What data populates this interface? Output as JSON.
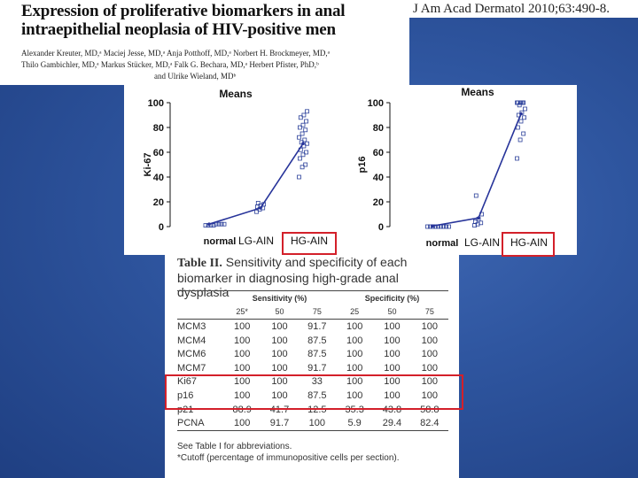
{
  "header": {
    "title": "Expression of proliferative biomarkers in anal intraepithelial neoplasia of HIV-positive men",
    "journal_ref": "J Am Acad Dermatol 2010;63:490-8.",
    "authors_line1": "Alexander Kreuter, MD,ᵃ Maciej Jesse, MD,ᵃ Anja Potthoff, MD,ᵃ Norbert H. Brockmeyer, MD,ᵃ",
    "authors_line2": "Thilo Gambichler, MD,ᵃ Markus Stücker, MD,ᵃ Falk G. Bechara, MD,ᵃ Herbert Pfister, PhD,ᵇ",
    "authors_line3": "and Ulrike Wieland, MDᵇ"
  },
  "chart_data": [
    {
      "type": "scatter",
      "title": "Means",
      "ylabel": "Ki-67",
      "xlabel": "",
      "categories": [
        "normal",
        "LG-AIN",
        "HG-AIN"
      ],
      "ylim": [
        0,
        100
      ],
      "yticks": [
        0,
        20,
        40,
        60,
        80,
        100
      ],
      "means": [
        2,
        15,
        67
      ],
      "points": {
        "normal": [
          1,
          1,
          1,
          1,
          2,
          2,
          2,
          2
        ],
        "LG-AIN": [
          12,
          14,
          15,
          16,
          17,
          18,
          19
        ],
        "HG-AIN": [
          40,
          48,
          50,
          55,
          58,
          60,
          62,
          65,
          67,
          68,
          70,
          72,
          75,
          78,
          80,
          82,
          85,
          88,
          90,
          93
        ]
      }
    },
    {
      "type": "scatter",
      "title": "Means",
      "ylabel": "p16",
      "xlabel": "",
      "categories": [
        "normal",
        "LG-AIN",
        "HG-AIN"
      ],
      "ylim": [
        0,
        100
      ],
      "yticks": [
        0,
        20,
        40,
        60,
        80,
        100
      ],
      "means": [
        0.5,
        7,
        91
      ],
      "points": {
        "normal": [
          0,
          0,
          0,
          0,
          0,
          0,
          0,
          0,
          0
        ],
        "LG-AIN": [
          1,
          2,
          3,
          4,
          6,
          10,
          25
        ],
        "HG-AIN": [
          55,
          70,
          75,
          80,
          85,
          88,
          90,
          92,
          95,
          98,
          100,
          100,
          100,
          100,
          100,
          100
        ]
      }
    }
  ],
  "table": {
    "title_bold": "Table II.",
    "title_rest": " Sensitivity and specificity of each biomarker in diagnosing high-grade anal dysplasia",
    "group_headers": [
      "Sensitivity (%)",
      "Specificity (%)"
    ],
    "sub_headers": [
      "25*",
      "50",
      "75",
      "25",
      "50",
      "75"
    ],
    "rows": [
      {
        "marker": "MCM3",
        "values": [
          "100",
          "100",
          "91.7",
          "100",
          "100",
          "100"
        ]
      },
      {
        "marker": "MCM4",
        "values": [
          "100",
          "100",
          "87.5",
          "100",
          "100",
          "100"
        ]
      },
      {
        "marker": "MCM6",
        "values": [
          "100",
          "100",
          "87.5",
          "100",
          "100",
          "100"
        ]
      },
      {
        "marker": "MCM7",
        "values": [
          "100",
          "100",
          "91.7",
          "100",
          "100",
          "100"
        ]
      },
      {
        "marker": "Ki67",
        "values": [
          "100",
          "100",
          "33",
          "100",
          "100",
          "100"
        ]
      },
      {
        "marker": "p16",
        "values": [
          "100",
          "100",
          "87.5",
          "100",
          "100",
          "100"
        ]
      },
      {
        "marker": "p21",
        "values": [
          "88.9",
          "41.7",
          "12.5",
          "35.3",
          "43.8",
          "58.8"
        ]
      },
      {
        "marker": "PCNA",
        "values": [
          "100",
          "91.7",
          "100",
          "5.9",
          "29.4",
          "82.4"
        ]
      }
    ],
    "footnote1": "See Table I for abbreviations.",
    "footnote2": "*Cutoff (percentage of immunopositive cells per section)."
  },
  "colors": {
    "highlight": "#d3202a",
    "mean_line": "#27349a",
    "background": "#2f56a0"
  }
}
